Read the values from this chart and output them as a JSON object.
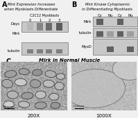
{
  "panel_A": {
    "label": "A",
    "title_line1": "Mirk Expression Increases",
    "title_line2": "when Myoblasts Differentiate",
    "subtitle": "C2C12 Myoblasts",
    "row_labels": [
      "Days",
      "Mirk",
      "tubulin"
    ],
    "col_labels": [
      "0",
      "1",
      "2",
      "3"
    ],
    "gel_bg": "#c8c8c8",
    "mirk_intensities": [
      0.72,
      0.52,
      0.42,
      0.36
    ],
    "tubulin_intensities": [
      0.5,
      0.5,
      0.5,
      0.5
    ]
  },
  "panel_B": {
    "label": "B",
    "title_line1": "Mirk Kinase Cytoplasmic",
    "title_line2": "in Differentiating Myoblasts",
    "col_labels": [
      "Cy",
      "Nu",
      "Cy",
      "Nu"
    ],
    "row_labels": [
      "Mirk",
      "tubulin",
      "MyoD"
    ],
    "gel_bg": "#c8c8c8",
    "mirk_bands": [
      true,
      false,
      true,
      false
    ],
    "tubulin_colors": [
      0.38,
      0.62,
      0.38,
      0.62
    ],
    "myod_bands": [
      false,
      true,
      false,
      true
    ]
  },
  "panel_C": {
    "label": "C",
    "title": "Mirk in Normal Muscle",
    "left_label": "200X",
    "right_label": "1000X",
    "left_bg": "#b0aca4",
    "right_bg": "#c0bcb8"
  },
  "figure_bg": "#f0f0f0"
}
